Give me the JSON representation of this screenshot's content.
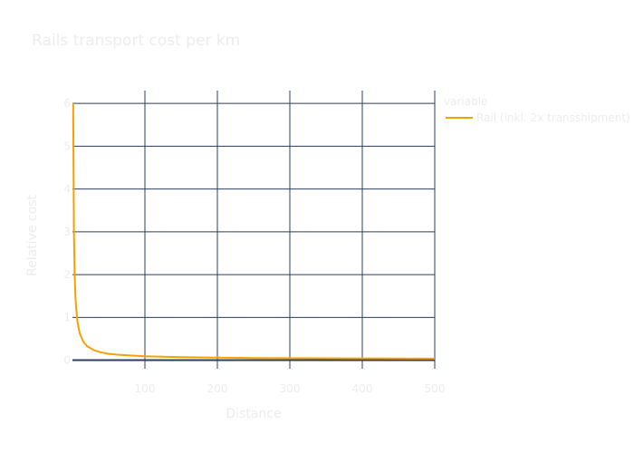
{
  "chart_data": {
    "type": "line",
    "title": "Rails transport cost per km",
    "xlabel": "Distance",
    "ylabel": "Relative cost",
    "xlim": [
      0,
      500
    ],
    "ylim": [
      -0.2,
      6.3
    ],
    "xticks": [
      100,
      200,
      300,
      400,
      500
    ],
    "xtick_labels": [
      "100",
      "200",
      "300",
      "400",
      "500"
    ],
    "yticks": [
      0,
      1,
      2,
      3,
      4,
      5,
      6
    ],
    "ytick_labels": [
      "0",
      "1",
      "2",
      "3",
      "4",
      "5",
      "6"
    ],
    "grid": true,
    "legend_title": "variable",
    "legend_position": "top-right",
    "series": [
      {
        "name": "Rail (inkl. 2x transshipment)",
        "color": "#f7a000",
        "x": [
          1,
          2,
          3,
          4,
          5,
          7,
          10,
          15,
          20,
          30,
          40,
          50,
          60,
          80,
          100,
          150,
          200,
          250,
          300,
          400,
          500
        ],
        "y": [
          6.0,
          3.03,
          2.03,
          1.53,
          1.23,
          0.89,
          0.63,
          0.43,
          0.33,
          0.23,
          0.18,
          0.15,
          0.13,
          0.11,
          0.09,
          0.07,
          0.06,
          0.05,
          0.047,
          0.04,
          0.036
        ]
      }
    ]
  },
  "colors": {
    "background": "#ffffff",
    "grid": "#2a3f5f",
    "text": "#ececec"
  }
}
